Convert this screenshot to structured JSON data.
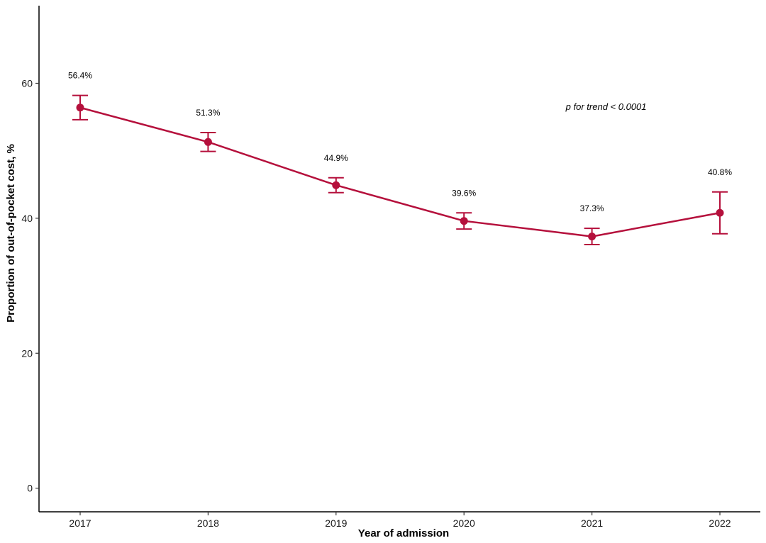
{
  "chart_data": {
    "type": "line",
    "x": [
      "2017",
      "2018",
      "2019",
      "2020",
      "2021",
      "2022"
    ],
    "series": [
      {
        "values": [
          56.4,
          51.3,
          44.9,
          39.6,
          37.3,
          40.8
        ],
        "lower": [
          54.6,
          49.9,
          43.8,
          38.4,
          36.1,
          37.7
        ],
        "upper": [
          58.2,
          52.7,
          46.0,
          40.8,
          38.5,
          43.9
        ],
        "labels": [
          "56.4%",
          "51.3%",
          "44.9%",
          "39.6%",
          "37.3%",
          "40.8%"
        ]
      }
    ],
    "xlabel": "Year of admission",
    "ylabel": "Proportion of out-of-pocket cost, %",
    "yticks": [
      0,
      20,
      40,
      60
    ],
    "ylim": [
      -3.5,
      71.5
    ],
    "grid": false,
    "annotation": "p for trend < 0.0001",
    "annotation_position": {
      "x": "2021",
      "y": 56.5
    },
    "color": "#b5103c"
  }
}
